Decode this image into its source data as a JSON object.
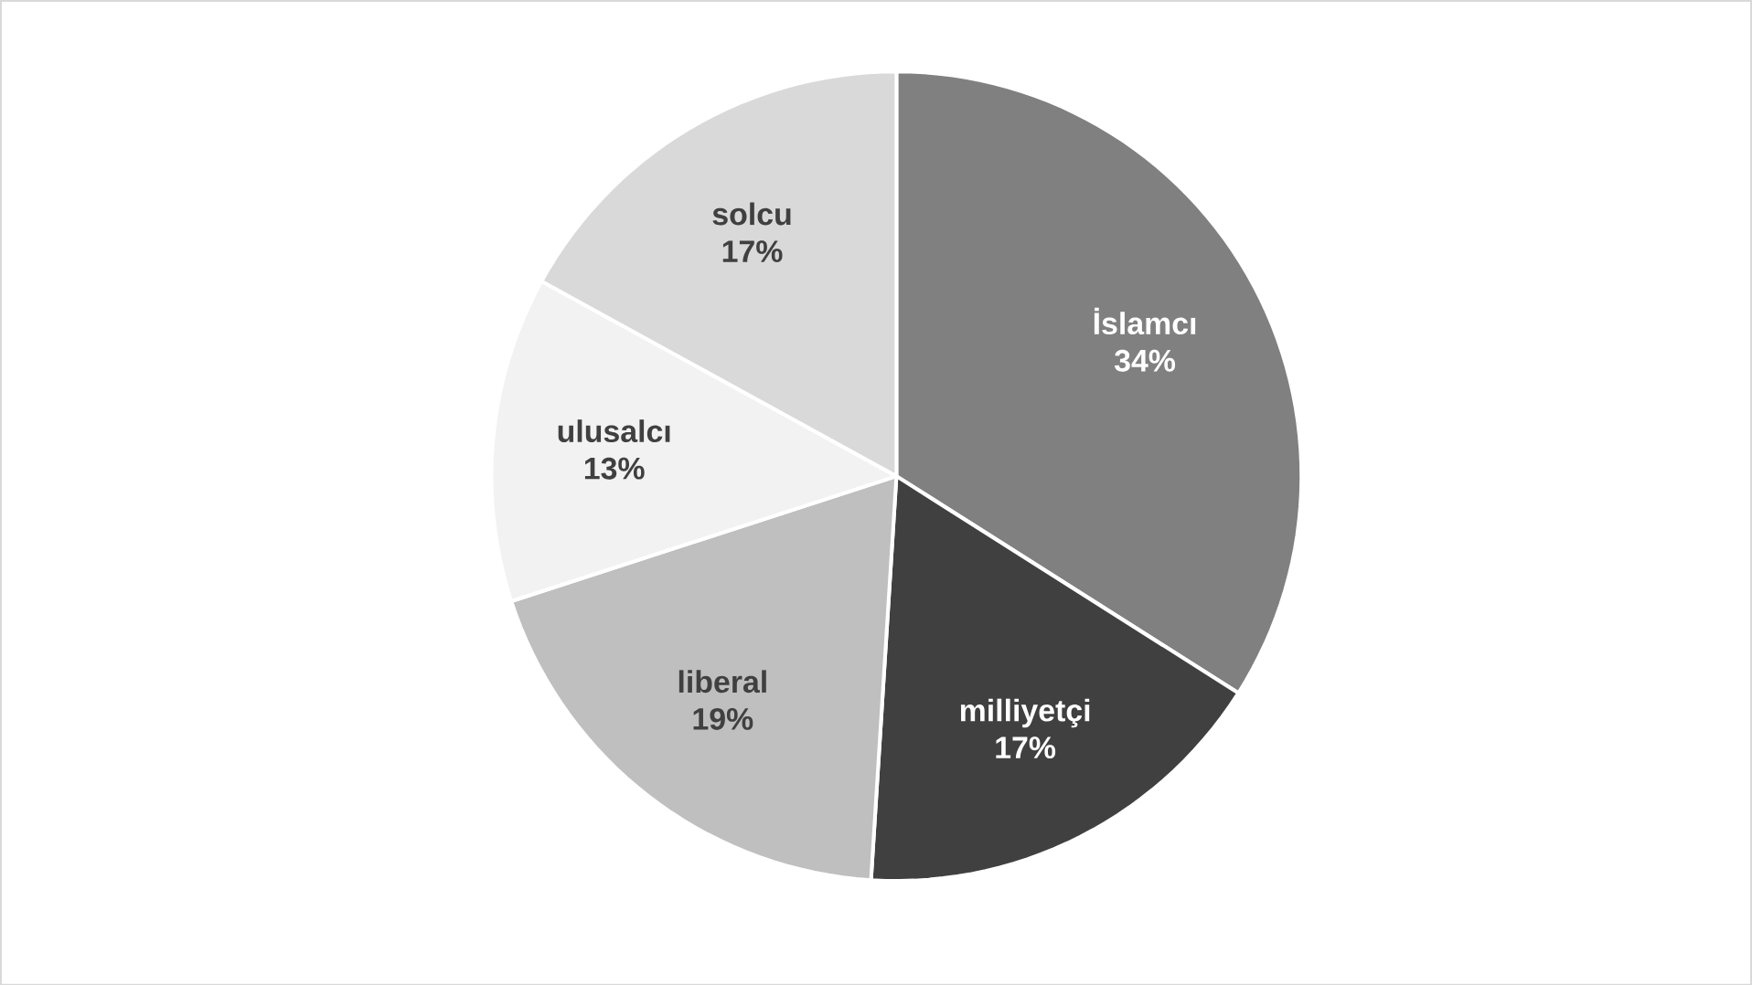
{
  "chart_data": {
    "type": "pie",
    "categories": [
      "İslamcı",
      "milliyetçi",
      "liberal",
      "ulusalcı",
      "solcu"
    ],
    "values": [
      34,
      17,
      19,
      13,
      17
    ],
    "colors": [
      "#808080",
      "#404040",
      "#bfbfbf",
      "#f2f2f2",
      "#d9d9d9"
    ],
    "value_labels": [
      "34%",
      "17%",
      "19%",
      "13%",
      "17%"
    ]
  }
}
